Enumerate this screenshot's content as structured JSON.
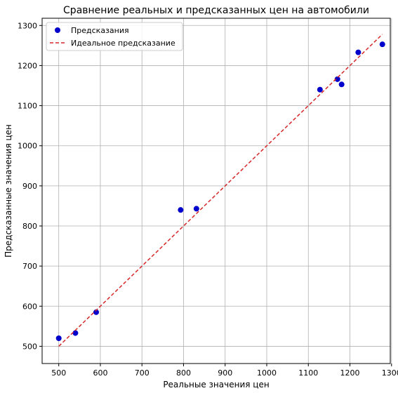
{
  "chart_data": {
    "type": "scatter",
    "title": "Сравнение реальных и предсказанных цен на автомобили",
    "xlabel": "Реальные значения цен",
    "ylabel": "Предсказанные значения цен",
    "xlim": [
      460,
      1297
    ],
    "ylim": [
      457,
      1318
    ],
    "xticks": [
      500,
      600,
      700,
      800,
      900,
      1000,
      1100,
      1200,
      1300
    ],
    "yticks": [
      500,
      600,
      700,
      800,
      900,
      1000,
      1100,
      1200,
      1300
    ],
    "grid": true,
    "legend": "top-left",
    "series": [
      {
        "name": "Предсказания",
        "kind": "scatter",
        "color": "#0000cc",
        "points": [
          {
            "x": 500,
            "y": 520
          },
          {
            "x": 540,
            "y": 533
          },
          {
            "x": 590,
            "y": 585
          },
          {
            "x": 793,
            "y": 840
          },
          {
            "x": 831,
            "y": 843
          },
          {
            "x": 1128,
            "y": 1140
          },
          {
            "x": 1170,
            "y": 1166
          },
          {
            "x": 1180,
            "y": 1153
          },
          {
            "x": 1220,
            "y": 1233
          },
          {
            "x": 1278,
            "y": 1253
          }
        ]
      },
      {
        "name": "Идеальное предсказание",
        "kind": "line",
        "style": "dashed",
        "color": "#d62728",
        "points": [
          {
            "x": 500,
            "y": 500
          },
          {
            "x": 1278,
            "y": 1278
          }
        ]
      }
    ]
  }
}
